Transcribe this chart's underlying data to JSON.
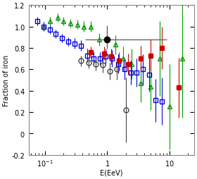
{
  "title": "",
  "xlabel": "E(EeV)",
  "ylabel": "Fraction of iron",
  "xlim": [
    0.055,
    25
  ],
  "ylim": [
    -0.2,
    1.2
  ],
  "background_color": "#ffffff",
  "flyes_eye_dot": {
    "color": "black",
    "marker": "o",
    "markerfacecolor": "black",
    "markersize": 6,
    "x": [
      1.0
    ],
    "y": [
      0.88
    ],
    "xerr_lo": [
      0.55
    ],
    "xerr_hi": [
      8.0
    ],
    "yerr_lo": [
      0.09
    ],
    "yerr_hi": [
      0.13
    ]
  },
  "agasa_a100": {
    "color": "#0000dd",
    "marker": "s",
    "markerfacecolor": "none",
    "markersize": 4,
    "x": [
      0.075,
      0.095,
      0.12,
      0.15,
      0.19,
      0.24,
      0.3,
      0.38,
      0.48,
      0.6,
      0.76,
      0.95,
      1.2,
      1.5,
      1.9,
      2.4,
      3.0,
      3.8,
      4.8,
      6.0,
      7.6
    ],
    "y": [
      1.05,
      1.0,
      0.97,
      0.93,
      0.89,
      0.86,
      0.84,
      0.82,
      0.73,
      0.7,
      0.7,
      0.72,
      0.7,
      0.65,
      0.6,
      0.57,
      0.57,
      0.6,
      0.55,
      0.31,
      0.3
    ],
    "yerr_lo": [
      0.04,
      0.04,
      0.04,
      0.04,
      0.04,
      0.04,
      0.05,
      0.05,
      0.06,
      0.06,
      0.06,
      0.07,
      0.08,
      0.09,
      0.1,
      0.11,
      0.13,
      0.14,
      0.16,
      0.2,
      0.22
    ],
    "yerr_hi": [
      0.04,
      0.04,
      0.04,
      0.04,
      0.04,
      0.04,
      0.05,
      0.05,
      0.06,
      0.06,
      0.06,
      0.07,
      0.08,
      0.09,
      0.1,
      0.11,
      0.13,
      0.14,
      0.16,
      0.2,
      0.22
    ]
  },
  "agasa_a1": {
    "color": "#cc0000",
    "marker": "s",
    "markerfacecolor": "#cc0000",
    "markersize": 5,
    "x": [
      0.55,
      0.9,
      1.15,
      1.55,
      2.2,
      3.5,
      5.0,
      7.5,
      14.0
    ],
    "y": [
      0.76,
      0.75,
      0.72,
      0.68,
      0.65,
      0.7,
      0.73,
      0.8,
      0.43
    ],
    "yerr_lo": [
      0.05,
      0.06,
      0.07,
      0.08,
      0.1,
      0.12,
      0.15,
      0.2,
      0.28
    ],
    "yerr_hi": [
      0.05,
      0.06,
      0.07,
      0.08,
      0.1,
      0.12,
      0.15,
      0.2,
      0.28
    ]
  },
  "haverah_park": {
    "color": "#444444",
    "marker": "o",
    "markerfacecolor": "none",
    "markersize": 5,
    "x": [
      0.38,
      0.5,
      0.65,
      0.85,
      1.1,
      1.45,
      2.0
    ],
    "y": [
      0.68,
      0.66,
      0.65,
      0.64,
      0.58,
      0.6,
      0.22
    ],
    "yerr_lo": [
      0.05,
      0.05,
      0.06,
      0.07,
      0.08,
      0.1,
      0.3
    ],
    "yerr_hi": [
      0.05,
      0.05,
      0.06,
      0.07,
      0.08,
      0.1,
      0.3
    ]
  },
  "flyes_eye_tri": {
    "color": "#009900",
    "marker": "^",
    "markerfacecolor": "none",
    "markersize": 5,
    "x": [
      0.095,
      0.12,
      0.16,
      0.2,
      0.26,
      0.33,
      0.42,
      0.55,
      0.75,
      1.0,
      1.35,
      1.8,
      2.5,
      3.5,
      5.0,
      7.0,
      10.0,
      16.0
    ],
    "y": [
      1.0,
      1.05,
      1.08,
      1.05,
      1.03,
      1.02,
      1.0,
      1.0,
      0.88,
      0.88,
      0.83,
      0.7,
      0.65,
      0.47,
      0.44,
      0.7,
      0.25,
      0.7
    ],
    "yerr_lo": [
      0.04,
      0.04,
      0.04,
      0.04,
      0.04,
      0.04,
      0.05,
      0.05,
      0.06,
      0.07,
      0.09,
      0.11,
      0.14,
      0.18,
      0.22,
      0.35,
      0.4,
      0.55
    ],
    "yerr_hi": [
      0.04,
      0.04,
      0.04,
      0.04,
      0.04,
      0.04,
      0.05,
      0.05,
      0.06,
      0.07,
      0.09,
      0.11,
      0.14,
      0.18,
      0.22,
      0.35,
      0.4,
      0.55
    ]
  }
}
